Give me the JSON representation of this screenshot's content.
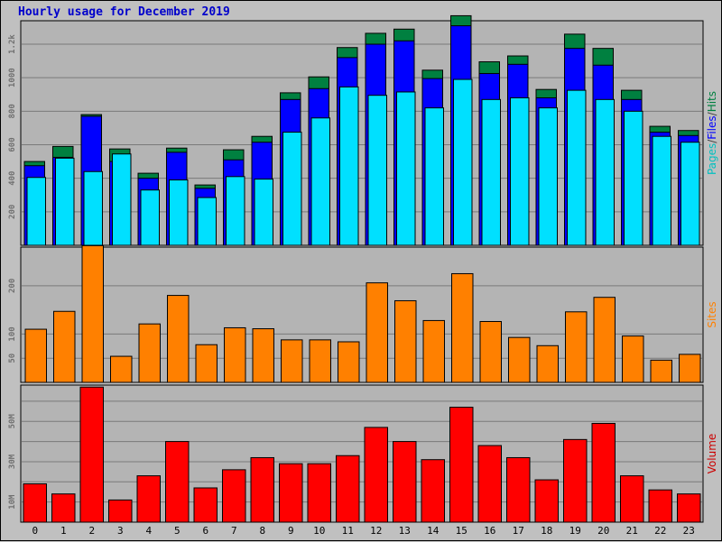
{
  "title": "Hourly usage for December 2019",
  "colors": {
    "background": "#c0c0c0",
    "plot_bg": "#b4b4b4",
    "grid": "#7a7a7a",
    "hits": "#008040",
    "files": "#0000ff",
    "pages": "#00e0ff",
    "sites": "#ff8000",
    "volume": "#ff0000",
    "title": "#0000cc"
  },
  "chart_data": [
    {
      "type": "bar",
      "name": "hits-files-pages",
      "categories": [
        "0",
        "1",
        "2",
        "3",
        "4",
        "5",
        "6",
        "7",
        "8",
        "9",
        "10",
        "11",
        "12",
        "13",
        "14",
        "15",
        "16",
        "17",
        "18",
        "19",
        "20",
        "21",
        "22",
        "23"
      ],
      "ylim": [
        0,
        1340
      ],
      "yticks": [
        200,
        400,
        600,
        800,
        1000,
        "1.2k"
      ],
      "ylabel_parts": [
        {
          "text": "Pages",
          "color": "#00c0c0"
        },
        {
          "text": "/",
          "color": "#404040"
        },
        {
          "text": "Files",
          "color": "#0000ff"
        },
        {
          "text": "/",
          "color": "#404040"
        },
        {
          "text": "Hits",
          "color": "#008040"
        }
      ],
      "series": [
        {
          "name": "Hits",
          "values": [
            500,
            590,
            780,
            575,
            430,
            580,
            360,
            570,
            650,
            910,
            1005,
            1180,
            1265,
            1290,
            1045,
            1370,
            1095,
            1130,
            930,
            1260,
            1175,
            925,
            710,
            685
          ]
        },
        {
          "name": "Files",
          "values": [
            475,
            525,
            770,
            500,
            400,
            555,
            340,
            510,
            615,
            870,
            935,
            1120,
            1200,
            1220,
            995,
            1310,
            1025,
            1080,
            880,
            1175,
            1075,
            870,
            675,
            655
          ]
        },
        {
          "name": "Pages",
          "values": [
            405,
            520,
            440,
            545,
            330,
            390,
            285,
            410,
            395,
            675,
            760,
            945,
            895,
            915,
            820,
            990,
            870,
            880,
            820,
            925,
            870,
            800,
            650,
            615
          ]
        }
      ]
    },
    {
      "type": "bar",
      "name": "sites",
      "categories": [
        "0",
        "1",
        "2",
        "3",
        "4",
        "5",
        "6",
        "7",
        "8",
        "9",
        "10",
        "11",
        "12",
        "13",
        "14",
        "15",
        "16",
        "17",
        "18",
        "19",
        "20",
        "21",
        "22",
        "23"
      ],
      "ylim": [
        0,
        280
      ],
      "yticks": [
        50,
        100,
        200
      ],
      "ylabel": "Sites",
      "series": [
        {
          "name": "Sites",
          "values": [
            110,
            147,
            283,
            54,
            121,
            180,
            78,
            113,
            111,
            88,
            88,
            84,
            206,
            169,
            128,
            225,
            126,
            93,
            76,
            146,
            176,
            96,
            46,
            58
          ]
        }
      ]
    },
    {
      "type": "bar",
      "name": "volume",
      "categories": [
        "0",
        "1",
        "2",
        "3",
        "4",
        "5",
        "6",
        "7",
        "8",
        "9",
        "10",
        "11",
        "12",
        "13",
        "14",
        "15",
        "16",
        "17",
        "18",
        "19",
        "20",
        "21",
        "22",
        "23"
      ],
      "ylim": [
        0,
        68
      ],
      "ytick_labels": [
        "10M",
        "30M",
        "50M"
      ],
      "ytick_values": [
        10,
        30,
        50
      ],
      "ylabel": "Volume",
      "series": [
        {
          "name": "Volume",
          "values": [
            19,
            14,
            67,
            11,
            23,
            40,
            17,
            26,
            32,
            29,
            29,
            33,
            47,
            40,
            31,
            57,
            38,
            32,
            21,
            41,
            49,
            23,
            16,
            14
          ]
        }
      ]
    }
  ]
}
